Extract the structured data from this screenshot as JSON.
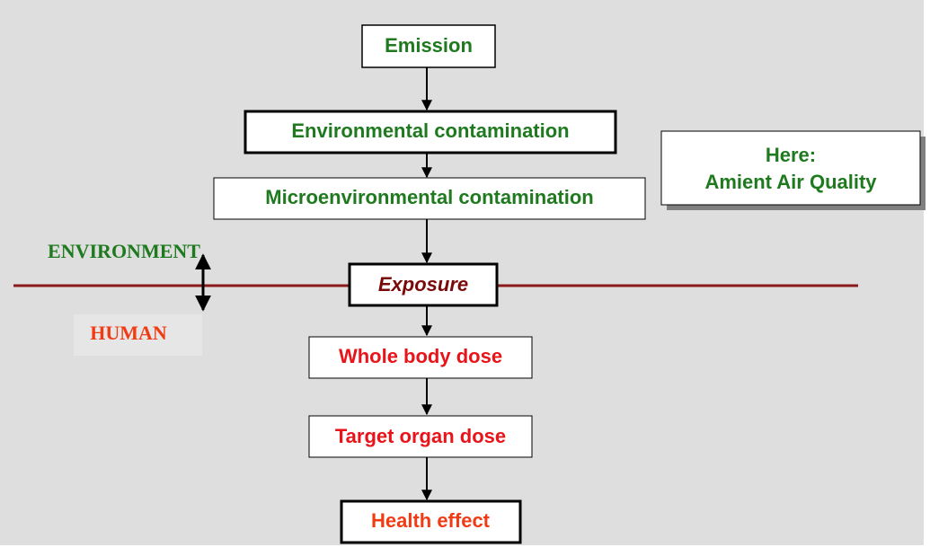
{
  "nodes": [
    {
      "label": "Emission"
    },
    {
      "label": "Environmental contamination"
    },
    {
      "label": "Microenvironmental contamination"
    },
    {
      "label": "Exposure"
    },
    {
      "label": "Whole body dose"
    },
    {
      "label": "Target organ dose"
    },
    {
      "label": "Health effect"
    }
  ],
  "note": {
    "lines": [
      "Here:",
      "Amient Air Quality"
    ]
  },
  "labels": {
    "environment": "ENVIRONMENT",
    "human": "HUMAN"
  }
}
